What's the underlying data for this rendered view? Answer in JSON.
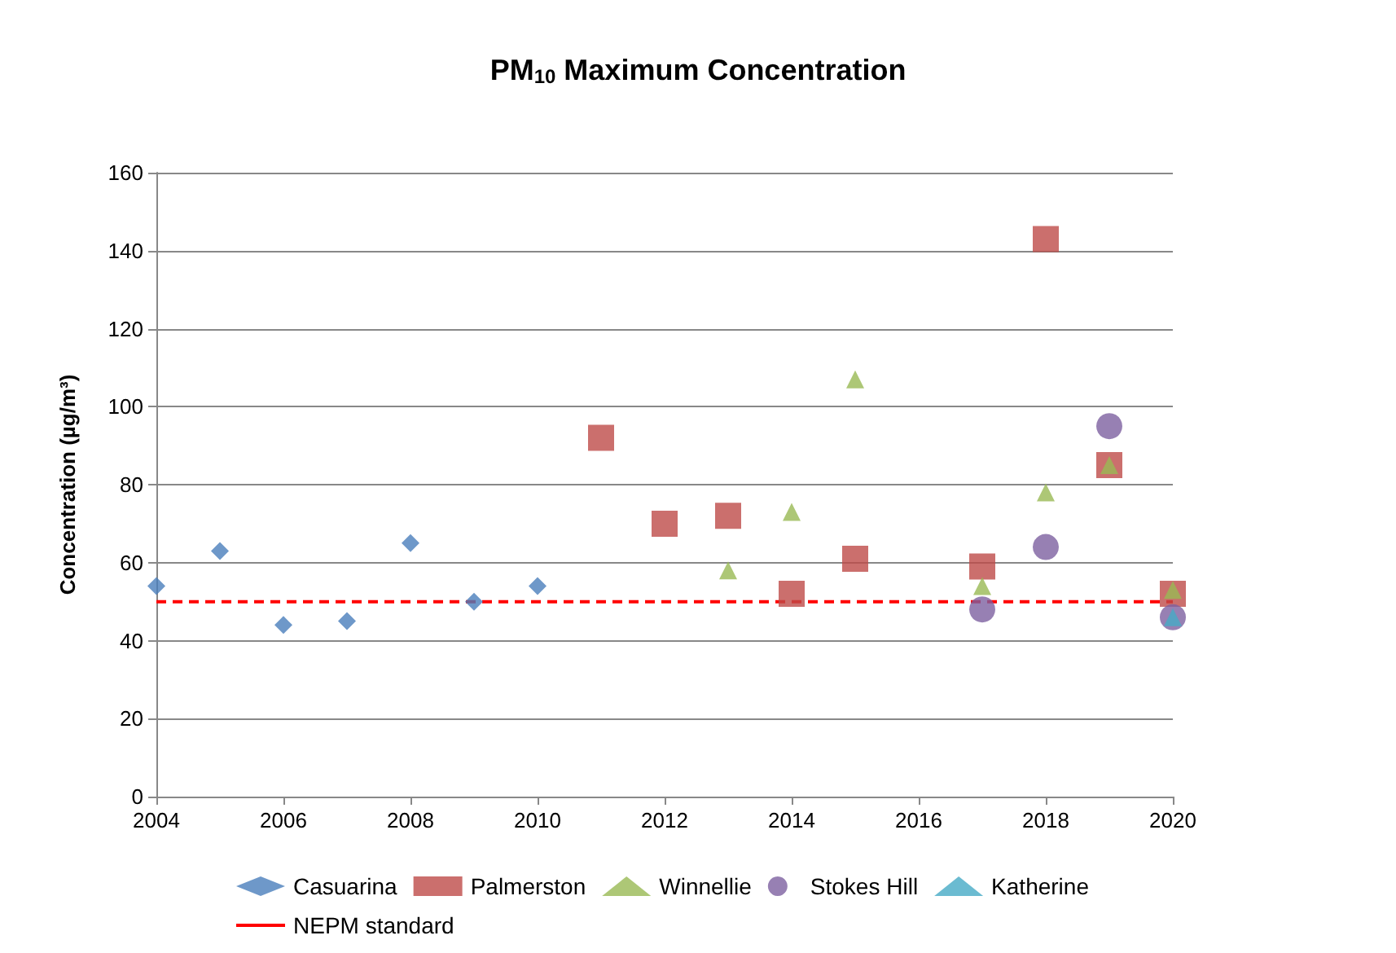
{
  "chart_data": {
    "type": "scatter",
    "title": "PM$_{10}$ Maximum Concentration",
    "ylabel": "Concentration (µg/m³)",
    "xlim": [
      2004,
      2020
    ],
    "xticks": [
      2004,
      2006,
      2008,
      2010,
      2012,
      2014,
      2016,
      2018,
      2020
    ],
    "ylim": [
      0,
      160
    ],
    "yticks": [
      0,
      20,
      40,
      60,
      80,
      100,
      120,
      140,
      160
    ],
    "grid": "y",
    "legend": "bottom",
    "series": [
      {
        "name": "Casuarina",
        "color": "#4a7ebb",
        "marker": "diamond",
        "x": [
          2004,
          2005,
          2006,
          2007,
          2008,
          2009,
          2010
        ],
        "values": [
          54,
          63,
          44,
          45,
          65,
          50,
          54
        ]
      },
      {
        "name": "Palmerston",
        "color": "#be4b48",
        "marker": "square",
        "x": [
          2011,
          2012,
          2013,
          2014,
          2015,
          2017,
          2018,
          2019,
          2020
        ],
        "values": [
          92,
          70,
          72,
          52,
          61,
          59,
          143,
          85,
          52
        ]
      },
      {
        "name": "Winnellie",
        "color": "#98b954",
        "marker": "triangle",
        "x": [
          2013,
          2014,
          2015,
          2017,
          2018,
          2019,
          2020
        ],
        "values": [
          58,
          73,
          107,
          54,
          78,
          85,
          53
        ]
      },
      {
        "name": "Stokes Hill",
        "color": "#7d60a0",
        "marker": "circle",
        "x": [
          2017,
          2018,
          2019,
          2020
        ],
        "values": [
          48,
          64,
          95,
          46
        ]
      },
      {
        "name": "Katherine",
        "color": "#46aac5",
        "marker": "triangle",
        "x": [
          2020
        ],
        "values": [
          46
        ]
      }
    ],
    "ref_lines": [
      {
        "axis": "y",
        "value": 50,
        "label": "NEPM standard",
        "color": "#ff0000",
        "line_style": "dashed"
      }
    ]
  }
}
